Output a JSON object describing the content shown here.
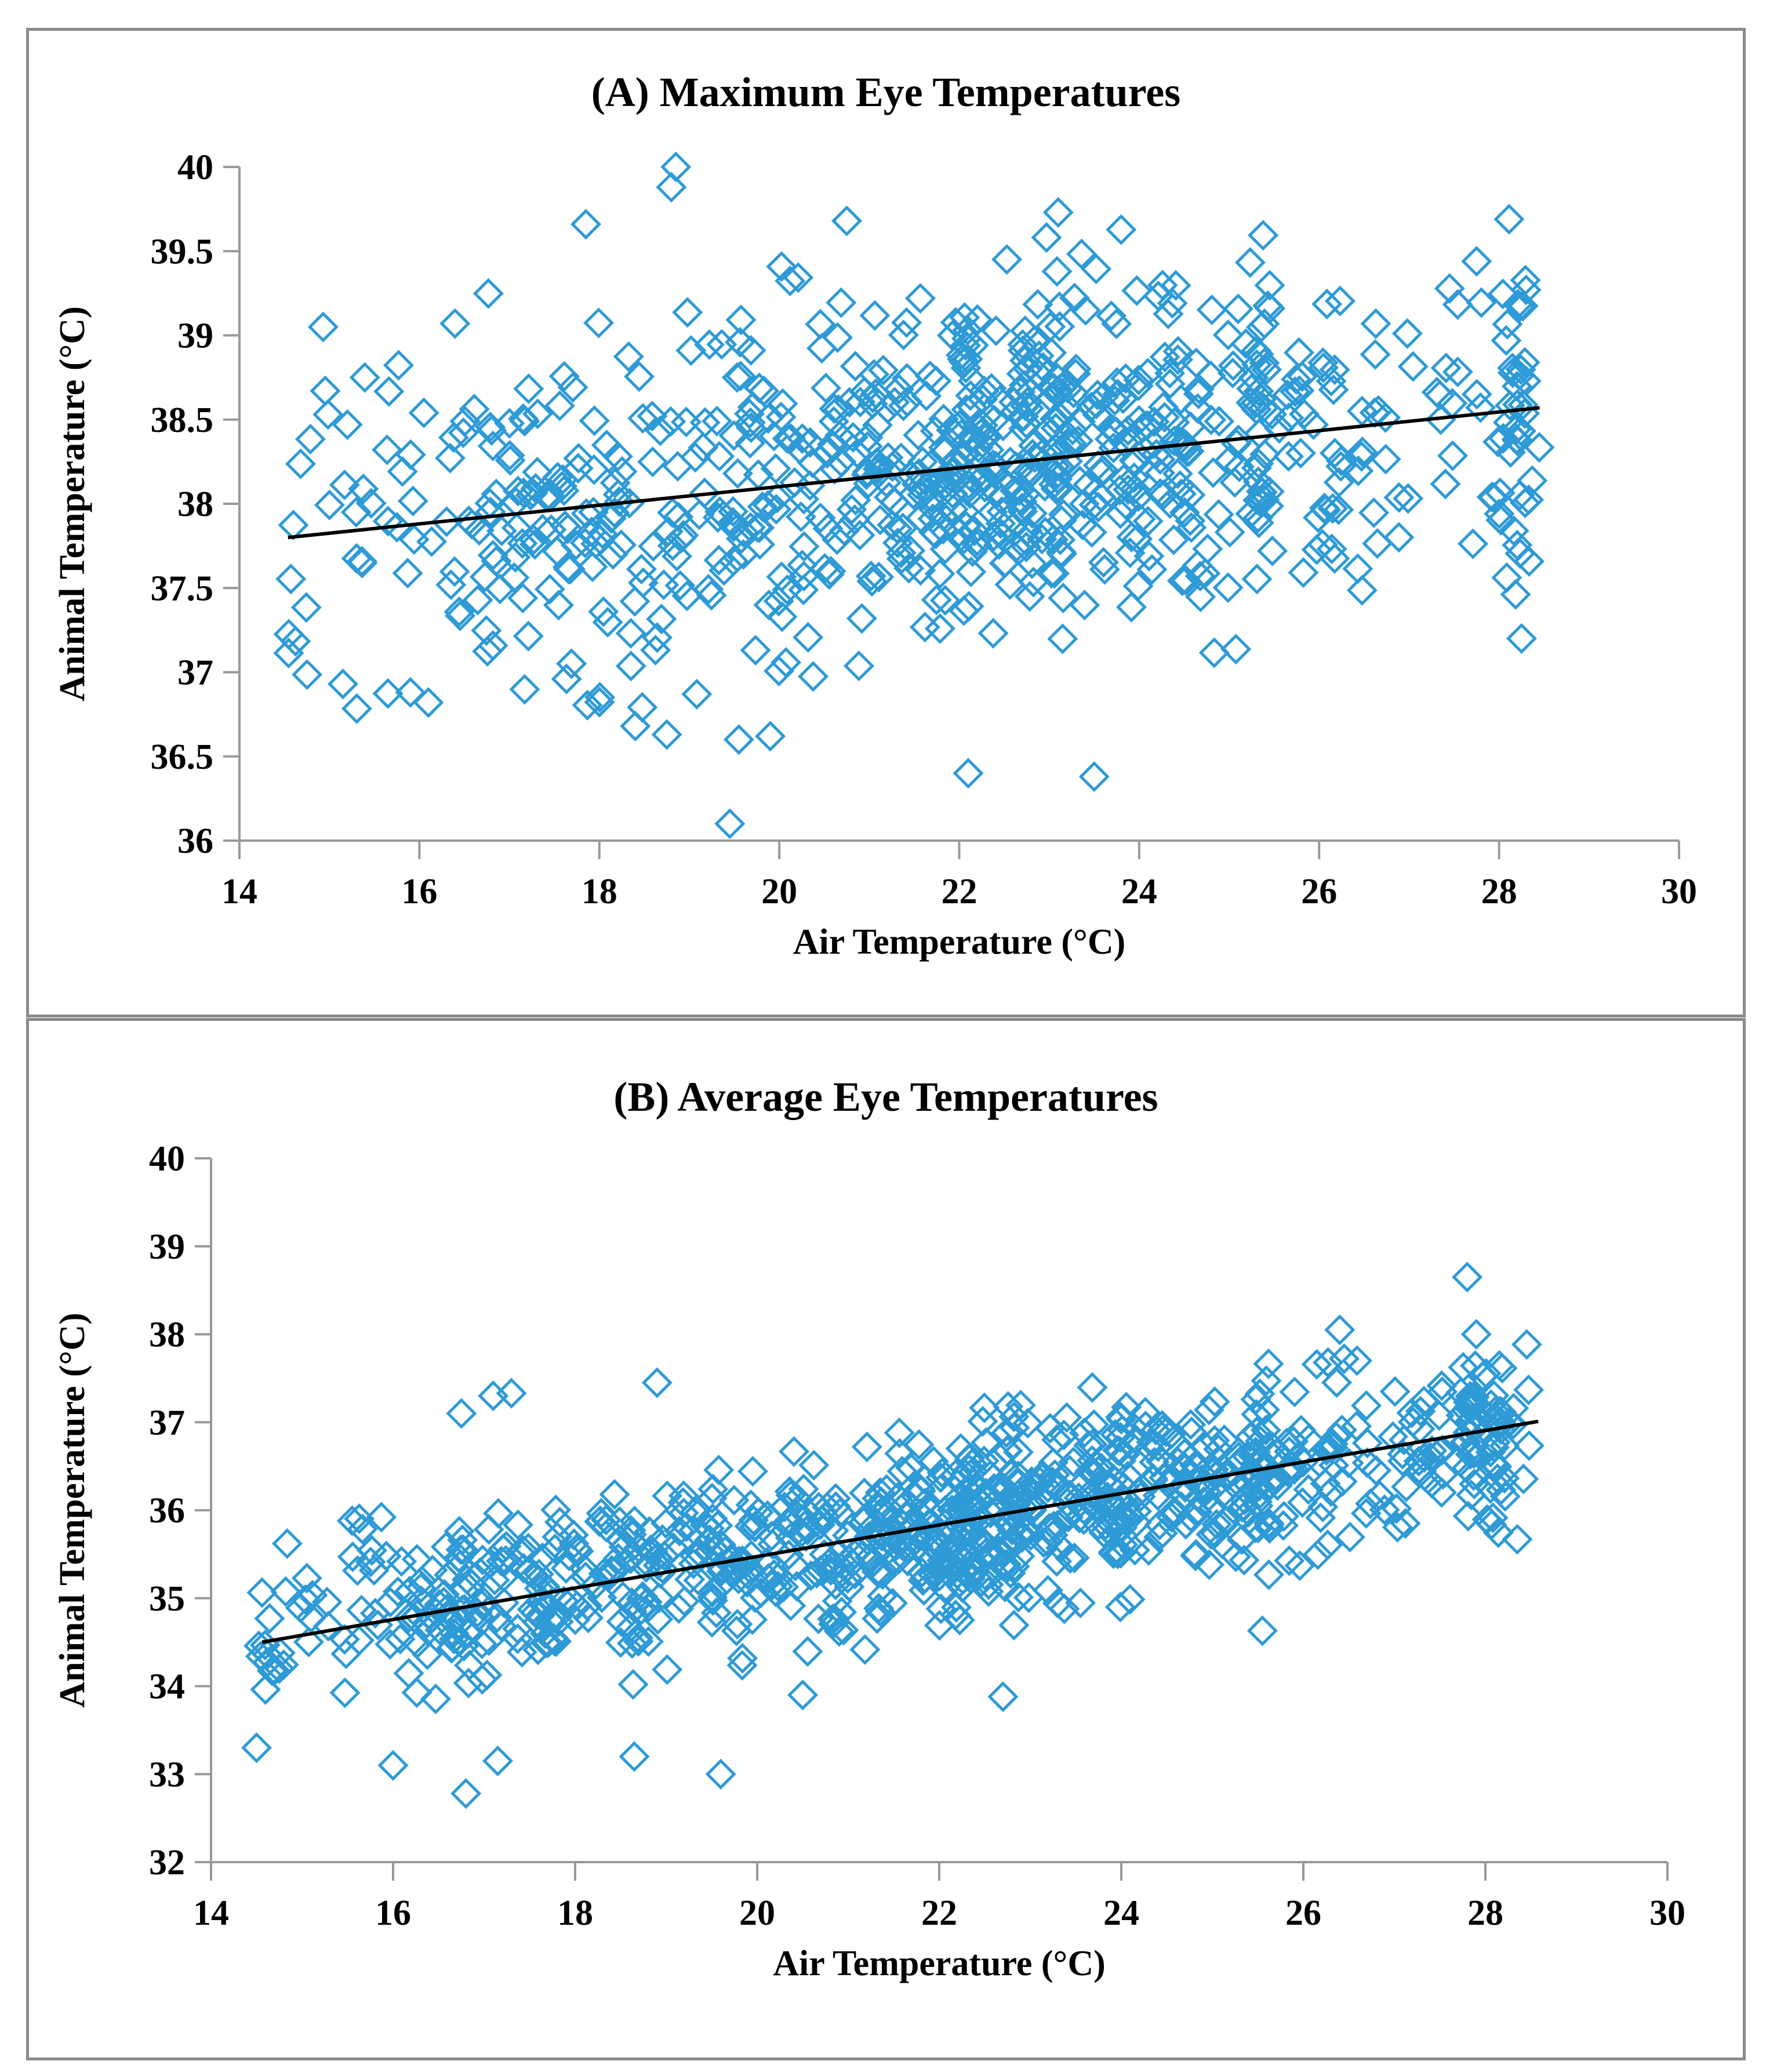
{
  "figure": {
    "background": "#FFFFFF",
    "frame_color": "#8A8A8A"
  },
  "chart_data": [
    {
      "type": "scatter",
      "panel_label": "A",
      "title": "(A) Maximum Eye Temperatures",
      "xlabel": "Air Temperature (°C)",
      "ylabel": "Animal Temperature (°C)",
      "xlim": [
        14,
        30
      ],
      "ylim": [
        36,
        40
      ],
      "xticks": [
        14,
        16,
        18,
        20,
        22,
        24,
        26,
        28,
        30
      ],
      "yticks": [
        36,
        36.5,
        37,
        37.5,
        38,
        38.5,
        39,
        39.5,
        40
      ],
      "grid": false,
      "legend": null,
      "axis_color": "#999999",
      "marker": {
        "shape": "diamond-open",
        "color": "#2E9AD6",
        "size": 46,
        "stroke_width": 5
      },
      "trendline": {
        "color": "#000000",
        "width": 6,
        "x": [
          14.54,
          28.45
        ],
        "y": [
          37.8,
          38.57
        ]
      },
      "points_spec": {
        "seed": 7,
        "n_random": 700,
        "segments": [
          {
            "a": 14.5,
            "b": 16.5,
            "w": 0.07
          },
          {
            "a": 16.5,
            "b": 18.5,
            "w": 0.13
          },
          {
            "a": 18.5,
            "b": 20.5,
            "w": 0.16
          },
          {
            "a": 20.5,
            "b": 22.5,
            "w": 0.22
          },
          {
            "a": 22.5,
            "b": 24.5,
            "w": 0.2
          },
          {
            "a": 24.5,
            "b": 26.3,
            "w": 0.14
          },
          {
            "a": 26.3,
            "b": 28.45,
            "w": 0.08
          }
        ],
        "clusters": [
          {
            "x": 22.15,
            "sd": 0.06,
            "n": 25
          },
          {
            "x": 22.75,
            "sd": 0.06,
            "n": 30
          },
          {
            "x": 23.1,
            "sd": 0.05,
            "n": 20
          },
          {
            "x": 25.35,
            "sd": 0.06,
            "n": 25
          },
          {
            "x": 28.2,
            "sd": 0.07,
            "n": 30
          }
        ],
        "slope": 0.0554,
        "intercept": 36.995,
        "noise_sd": 0.5,
        "dev_clip": 1.35,
        "y_clip": [
          36.35,
          39.85
        ],
        "outliers": [
          [
            18.85,
            40.0
          ],
          [
            18.8,
            39.88
          ],
          [
            23.1,
            39.73
          ],
          [
            17.85,
            39.66
          ],
          [
            20.75,
            39.68
          ],
          [
            22.1,
            36.4
          ],
          [
            23.5,
            36.38
          ],
          [
            19.45,
            36.1
          ],
          [
            19.9,
            36.62
          ],
          [
            19.55,
            36.6
          ],
          [
            18.4,
            36.68
          ],
          [
            18.75,
            36.63
          ],
          [
            27.75,
            39.44
          ],
          [
            28.3,
            39.27
          ],
          [
            15.2,
            38.47
          ],
          [
            16.05,
            38.54
          ],
          [
            15.15,
            36.93
          ],
          [
            15.9,
            36.88
          ],
          [
            16.1,
            36.82
          ],
          [
            28.25,
            37.2
          ]
        ]
      }
    },
    {
      "type": "scatter",
      "panel_label": "B",
      "title": "(B) Average Eye Temperatures",
      "xlabel": "Air Temperature (°C)",
      "ylabel": "Animal Temperature (°C)",
      "xlim": [
        14,
        30
      ],
      "ylim": [
        32,
        40
      ],
      "xticks": [
        14,
        16,
        18,
        20,
        22,
        24,
        26,
        28,
        30
      ],
      "yticks": [
        32,
        33,
        34,
        35,
        36,
        37,
        38,
        39,
        40
      ],
      "grid": false,
      "legend": null,
      "axis_color": "#999999",
      "marker": {
        "shape": "diamond-open",
        "color": "#2E9AD6",
        "size": 46,
        "stroke_width": 5
      },
      "trendline": {
        "color": "#000000",
        "width": 6,
        "x": [
          14.56,
          28.58
        ],
        "y": [
          34.5,
          37.01
        ]
      },
      "points_spec": {
        "seed": 11,
        "n_random": 820,
        "segments": [
          {
            "a": 14.5,
            "b": 16.5,
            "w": 0.08
          },
          {
            "a": 16.5,
            "b": 18.5,
            "w": 0.12
          },
          {
            "a": 18.5,
            "b": 20.5,
            "w": 0.16
          },
          {
            "a": 20.5,
            "b": 22.5,
            "w": 0.22
          },
          {
            "a": 22.5,
            "b": 24.5,
            "w": 0.2
          },
          {
            "a": 24.5,
            "b": 26.4,
            "w": 0.14
          },
          {
            "a": 26.4,
            "b": 28.5,
            "w": 0.08
          }
        ],
        "clusters": [
          {
            "x": 22.3,
            "sd": 0.06,
            "n": 25
          },
          {
            "x": 22.85,
            "sd": 0.06,
            "n": 25
          },
          {
            "x": 24.0,
            "sd": 0.06,
            "n": 20
          },
          {
            "x": 25.5,
            "sd": 0.06,
            "n": 25
          },
          {
            "x": 27.85,
            "sd": 0.05,
            "n": 25
          },
          {
            "x": 28.15,
            "sd": 0.06,
            "n": 25
          }
        ],
        "slope": 0.1786,
        "intercept": 31.9,
        "noise_sd": 0.5,
        "dev_clip": 1.3,
        "y_clip": [
          32.9,
          38.1
        ],
        "outliers": [
          [
            27.8,
            38.65
          ],
          [
            16.8,
            32.78
          ],
          [
            19.6,
            33.0
          ],
          [
            16.0,
            33.1
          ],
          [
            17.15,
            33.15
          ],
          [
            18.65,
            33.2
          ],
          [
            14.5,
            33.3
          ],
          [
            14.75,
            34.2
          ],
          [
            26.4,
            38.05
          ],
          [
            27.9,
            38.0
          ],
          [
            15.55,
            35.88
          ],
          [
            17.3,
            37.33
          ],
          [
            18.9,
            37.45
          ],
          [
            25.55,
            34.63
          ],
          [
            22.7,
            33.88
          ],
          [
            16.75,
            37.1
          ],
          [
            17.1,
            37.3
          ],
          [
            14.7,
            34.18
          ],
          [
            28.35,
            35.67
          ],
          [
            20.5,
            33.9
          ]
        ]
      }
    }
  ]
}
